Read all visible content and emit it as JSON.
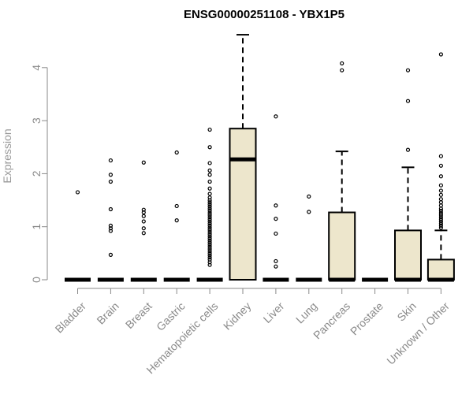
{
  "chart_data": {
    "type": "box",
    "title": "ENSG00000251108 - YBX1P5",
    "xlabel": "",
    "ylabel": "Expression",
    "ylim": [
      0,
      4.6
    ],
    "yticks": [
      0,
      1,
      2,
      3,
      4
    ],
    "grid": false,
    "legend": "none",
    "box_fill": "#ede6cc",
    "categories": [
      "Bladder",
      "Brain",
      "Breast",
      "Gastric",
      "Hematopoietic cells",
      "Kidney",
      "Liver",
      "Lung",
      "Pancreas",
      "Prostate",
      "Skin",
      "Unknown / Other"
    ],
    "boxes": [
      {
        "category": "Bladder",
        "q1": 0,
        "median": 0,
        "q3": 0,
        "whisker_low": 0,
        "whisker_high": 0,
        "outliers": [
          1.65
        ]
      },
      {
        "category": "Brain",
        "q1": 0,
        "median": 0,
        "q3": 0,
        "whisker_low": 0,
        "whisker_high": 0,
        "outliers": [
          0.47,
          0.92,
          0.97,
          1.02,
          1.33,
          1.85,
          1.98,
          2.25
        ]
      },
      {
        "category": "Breast",
        "q1": 0,
        "median": 0,
        "q3": 0,
        "whisker_low": 0,
        "whisker_high": 0,
        "outliers": [
          0.88,
          0.97,
          1.1,
          1.2,
          1.27,
          1.32,
          2.21
        ]
      },
      {
        "category": "Gastric",
        "q1": 0,
        "median": 0,
        "q3": 0,
        "whisker_low": 0,
        "whisker_high": 0,
        "outliers": [
          1.12,
          1.39,
          2.4
        ]
      },
      {
        "category": "Hematopoietic cells",
        "q1": 0,
        "median": 0,
        "q3": 0,
        "whisker_low": 0,
        "whisker_high": 0,
        "outliers": [
          0.28,
          0.33,
          0.38,
          0.42,
          0.46,
          0.5,
          0.54,
          0.58,
          0.62,
          0.66,
          0.7,
          0.74,
          0.78,
          0.82,
          0.86,
          0.9,
          0.94,
          0.98,
          1.02,
          1.06,
          1.1,
          1.14,
          1.18,
          1.22,
          1.26,
          1.3,
          1.34,
          1.38,
          1.42,
          1.46,
          1.5,
          1.55,
          1.62,
          1.72,
          1.85,
          1.98,
          2.06,
          2.2,
          2.5,
          2.83
        ]
      },
      {
        "category": "Kidney",
        "q1": 0,
        "median": 2.27,
        "q3": 2.85,
        "whisker_low": 0,
        "whisker_high": 4.62,
        "outliers": []
      },
      {
        "category": "Liver",
        "q1": 0,
        "median": 0,
        "q3": 0,
        "whisker_low": 0,
        "whisker_high": 0,
        "outliers": [
          0.25,
          0.35,
          0.87,
          1.15,
          1.4,
          3.08
        ]
      },
      {
        "category": "Lung",
        "q1": 0,
        "median": 0,
        "q3": 0,
        "whisker_low": 0,
        "whisker_high": 0,
        "outliers": [
          1.28,
          1.57
        ]
      },
      {
        "category": "Pancreas",
        "q1": 0,
        "median": 0,
        "q3": 1.27,
        "whisker_low": 0,
        "whisker_high": 2.42,
        "outliers": [
          3.95,
          4.08
        ]
      },
      {
        "category": "Prostate",
        "q1": 0,
        "median": 0,
        "q3": 0,
        "whisker_low": 0,
        "whisker_high": 0,
        "outliers": []
      },
      {
        "category": "Skin",
        "q1": 0,
        "median": 0,
        "q3": 0.93,
        "whisker_low": 0,
        "whisker_high": 2.12,
        "outliers": [
          2.45,
          3.37,
          3.95
        ]
      },
      {
        "category": "Unknown / Other",
        "q1": 0,
        "median": 0,
        "q3": 0.38,
        "whisker_low": 0,
        "whisker_high": 0.93,
        "outliers": [
          0.98,
          1.02,
          1.06,
          1.1,
          1.14,
          1.18,
          1.22,
          1.26,
          1.3,
          1.34,
          1.4,
          1.46,
          1.52,
          1.6,
          1.68,
          1.78,
          1.95,
          2.15,
          2.33,
          4.25
        ]
      }
    ]
  }
}
